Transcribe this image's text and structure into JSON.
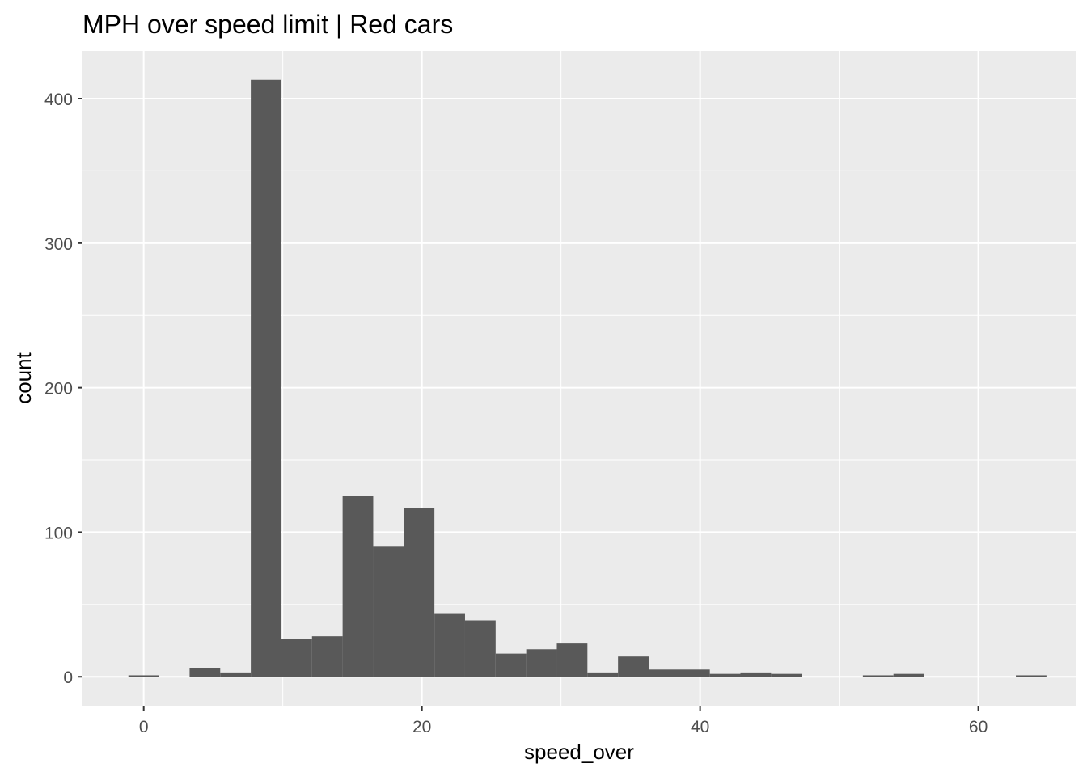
{
  "chart_data": {
    "type": "bar",
    "title": "MPH over speed limit | Red cars",
    "xlabel": "speed_over",
    "ylabel": "count",
    "xlim": [
      -4.4,
      67.0
    ],
    "ylim": [
      -20,
      433
    ],
    "x_ticks": [
      0,
      20,
      40,
      60
    ],
    "y_ticks": [
      0,
      100,
      200,
      300,
      400
    ],
    "grid": true,
    "bin_width": 2.2,
    "bins": [
      {
        "x": 0.0,
        "count": 1
      },
      {
        "x": 2.2,
        "count": 0
      },
      {
        "x": 4.4,
        "count": 6
      },
      {
        "x": 6.6,
        "count": 3
      },
      {
        "x": 8.8,
        "count": 413
      },
      {
        "x": 11.0,
        "count": 26
      },
      {
        "x": 13.2,
        "count": 28
      },
      {
        "x": 15.4,
        "count": 125
      },
      {
        "x": 17.6,
        "count": 90
      },
      {
        "x": 19.8,
        "count": 117
      },
      {
        "x": 22.0,
        "count": 44
      },
      {
        "x": 24.2,
        "count": 39
      },
      {
        "x": 26.4,
        "count": 16
      },
      {
        "x": 28.6,
        "count": 19
      },
      {
        "x": 30.8,
        "count": 23
      },
      {
        "x": 33.0,
        "count": 3
      },
      {
        "x": 35.2,
        "count": 14
      },
      {
        "x": 37.4,
        "count": 5
      },
      {
        "x": 39.6,
        "count": 5
      },
      {
        "x": 41.8,
        "count": 2
      },
      {
        "x": 44.0,
        "count": 3
      },
      {
        "x": 46.2,
        "count": 2
      },
      {
        "x": 48.4,
        "count": 0
      },
      {
        "x": 50.6,
        "count": 0
      },
      {
        "x": 52.8,
        "count": 1
      },
      {
        "x": 55.0,
        "count": 2
      },
      {
        "x": 57.2,
        "count": 0
      },
      {
        "x": 59.4,
        "count": 0
      },
      {
        "x": 61.6,
        "count": 0
      },
      {
        "x": 63.8,
        "count": 1
      }
    ],
    "colors": {
      "panel": "#ebebeb",
      "grid_major": "#ffffff",
      "bar": "#595959",
      "tick_text": "#4d4d4d",
      "tick_mark": "#333333"
    }
  }
}
